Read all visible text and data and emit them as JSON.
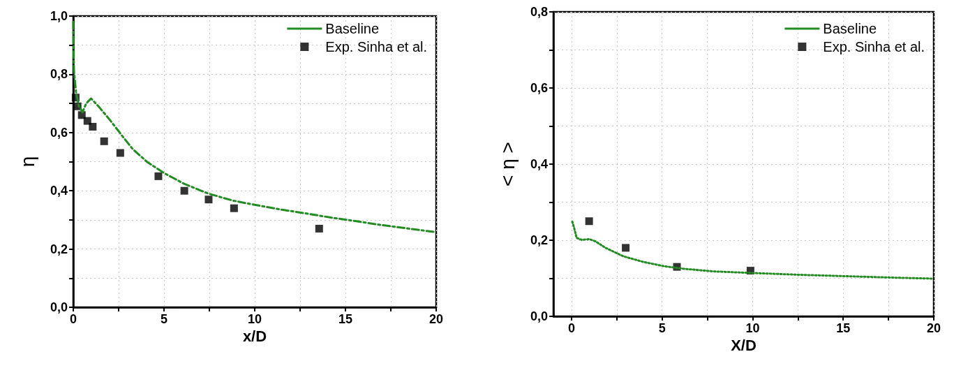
{
  "chart_data": [
    {
      "type": "line",
      "xlabel": "x/D",
      "ylabel": "η",
      "xlim": [
        0,
        20
      ],
      "ylim": [
        0,
        1
      ],
      "xticks": [
        0,
        {
          "value": 2.5,
          "label": null
        },
        5,
        {
          "value": 7.5,
          "label": null
        },
        10,
        {
          "value": 12.5,
          "label": null
        },
        15,
        {
          "value": 17.5,
          "label": null
        },
        20
      ],
      "yticks": [
        {
          "value": 0,
          "label": "0,0"
        },
        {
          "value": 0.1,
          "label": null
        },
        {
          "value": 0.2,
          "label": "0,2"
        },
        {
          "value": 0.3,
          "label": null
        },
        {
          "value": 0.4,
          "label": "0,4"
        },
        {
          "value": 0.5,
          "label": null
        },
        {
          "value": 0.6,
          "label": "0,6"
        },
        {
          "value": 0.7,
          "label": null
        },
        {
          "value": 0.8,
          "label": "0,8"
        },
        {
          "value": 0.9,
          "label": null
        },
        {
          "value": 1.0,
          "label": "1,0"
        }
      ],
      "grid": true,
      "legend": "top right",
      "series": [
        {
          "name": "Baseline",
          "type": "line",
          "color": "#228b22",
          "line_style": "dashed",
          "marker": "none",
          "x": [
            0,
            0.02,
            0.04,
            0.15,
            0.31,
            0.51,
            0.71,
            0.98,
            1.39,
            2.06,
            2.74,
            3.28,
            4.09,
            5.03,
            6.11,
            7.46,
            8.81,
            10.16,
            11.5,
            12.85,
            14.2,
            15.55,
            16.9,
            18.25,
            20
          ],
          "values": [
            0.98,
            0.87,
            0.81,
            0.74,
            0.69,
            0.67,
            0.7,
            0.717,
            0.69,
            0.64,
            0.585,
            0.543,
            0.498,
            0.46,
            0.424,
            0.39,
            0.366,
            0.35,
            0.335,
            0.322,
            0.308,
            0.296,
            0.283,
            0.272,
            0.258
          ]
        },
        {
          "name": "Exp. Sinha et al.",
          "type": "scatter",
          "color": "#000000",
          "marker": "square",
          "x": [
            0.13,
            0.24,
            0.47,
            0.78,
            1.07,
            1.7,
            2.59,
            4.69,
            6.12,
            7.46,
            8.86,
            13.55
          ],
          "values": [
            0.72,
            0.69,
            0.66,
            0.64,
            0.62,
            0.57,
            0.53,
            0.45,
            0.4,
            0.37,
            0.34,
            0.27
          ]
        }
      ]
    },
    {
      "type": "line",
      "xlabel": "X/D",
      "ylabel": "< η >",
      "xlim": [
        -1,
        20
      ],
      "ylim": [
        0,
        0.8
      ],
      "xticks": [
        0,
        {
          "value": 2.5,
          "label": null
        },
        5,
        {
          "value": 7.5,
          "label": null
        },
        10,
        {
          "value": 12.5,
          "label": null
        },
        15,
        {
          "value": 17.5,
          "label": null
        },
        20
      ],
      "yticks": [
        {
          "value": 0,
          "label": "0,0"
        },
        {
          "value": 0.1,
          "label": null
        },
        {
          "value": 0.2,
          "label": "0,2"
        },
        {
          "value": 0.3,
          "label": null
        },
        {
          "value": 0.4,
          "label": "0,4"
        },
        {
          "value": 0.5,
          "label": null
        },
        {
          "value": 0.6,
          "label": "0,6"
        },
        {
          "value": 0.7,
          "label": null
        },
        {
          "value": 0.8,
          "label": "0,8"
        }
      ],
      "grid": true,
      "legend": "top right",
      "series": [
        {
          "name": "Baseline",
          "type": "line",
          "color": "#228b22",
          "line_style": "dotted",
          "marker": "none",
          "x": [
            0.04,
            0.14,
            0.28,
            0.56,
            0.97,
            1.32,
            1.88,
            2.85,
            3.96,
            5.07,
            6.18,
            7.85,
            9.93,
            12.7,
            15.5,
            18.3,
            20
          ],
          "values": [
            0.249,
            0.233,
            0.206,
            0.201,
            0.203,
            0.197,
            0.18,
            0.158,
            0.143,
            0.132,
            0.125,
            0.118,
            0.114,
            0.109,
            0.105,
            0.101,
            0.099
          ]
        },
        {
          "name": "Exp. Sinha et al.",
          "type": "scatter",
          "color": "#000000",
          "marker": "square",
          "x": [
            0.97,
            2.99,
            5.82,
            9.88
          ],
          "values": [
            0.25,
            0.18,
            0.13,
            0.12
          ]
        }
      ]
    }
  ]
}
